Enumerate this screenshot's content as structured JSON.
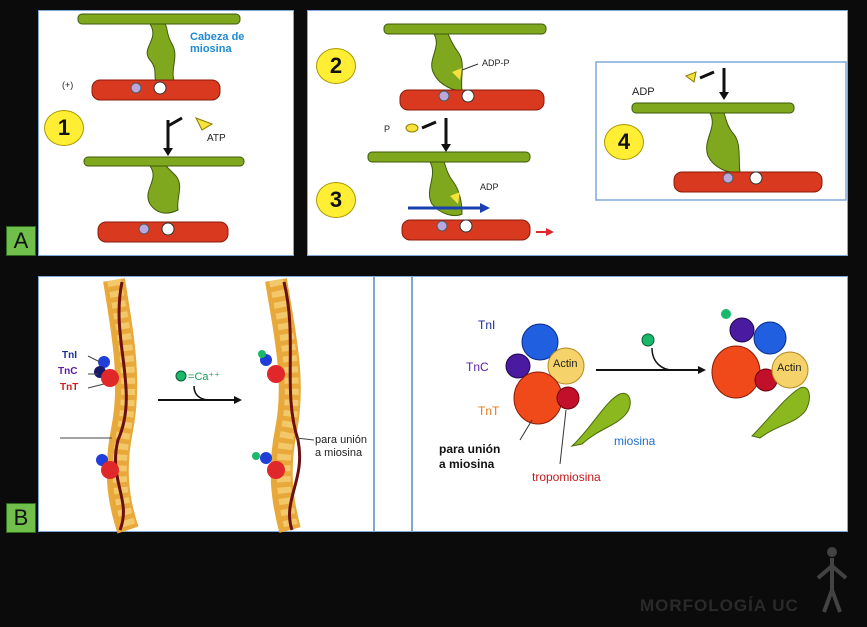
{
  "panel_a": {
    "badge": "A",
    "step1": {
      "number": "1",
      "head_label_line1": "Cabeza de",
      "head_label_line2": "miosina",
      "plus_label": "(+)",
      "atp_label": "ATP"
    },
    "step2": {
      "number": "2",
      "label": "ADP-P"
    },
    "step3": {
      "number": "3",
      "p_label": "P",
      "adp_label": "ADP"
    },
    "step4": {
      "number": "4",
      "adp_label": "ADP"
    }
  },
  "panel_b": {
    "badge": "B",
    "left": {
      "tni": "TnI",
      "tnc": "TnC",
      "tnt": "TnT",
      "ca_eq": "=",
      "ca_label": "Ca⁺⁺",
      "binding_line1": "para unión",
      "binding_line2": "a miosina"
    },
    "right": {
      "tni": "TnI",
      "tnc": "TnC",
      "tnt": "TnT",
      "actin": "Actin",
      "actin2": "Actin",
      "binding_line1": "para unión",
      "binding_line2": "a miosina",
      "myosin": "miosina",
      "tropomyosin": "tropomiosina"
    }
  },
  "watermark": "MORFOLOGÍA UC",
  "colors": {
    "myosin": "#7fa81e",
    "actin": "#d93a1f",
    "panel_border": "#7fa8d8",
    "badge": "#6fbf4a",
    "number_circle": "#ffee33"
  }
}
